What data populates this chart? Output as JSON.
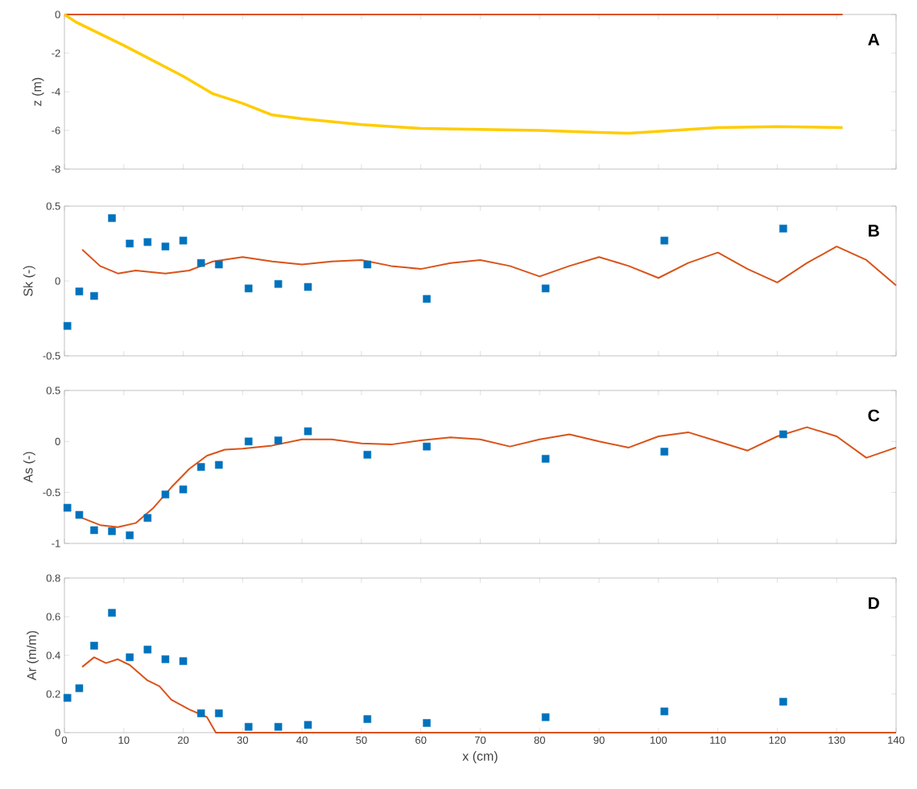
{
  "chart_data": [
    {
      "type": "line",
      "ylabel": "z (m)",
      "annotations": [
        "A"
      ],
      "xlim": [
        0,
        140
      ],
      "xticks": [
        0,
        10,
        20,
        30,
        40,
        50,
        60,
        70,
        80,
        90,
        100,
        110,
        120,
        130,
        140
      ],
      "ylim": [
        -8,
        0
      ],
      "yticks": [
        -8,
        -6,
        -4,
        -2,
        0
      ],
      "tick_labels": "y",
      "grid": false,
      "series": [
        {
          "color": "#d95319",
          "x": [
            0,
            131
          ],
          "values": [
            0,
            0
          ]
        },
        {
          "color": "#ffcc00",
          "x": [
            0,
            2,
            10,
            20,
            25,
            30,
            35,
            40,
            50,
            60,
            70,
            80,
            90,
            95,
            100,
            110,
            120,
            131
          ],
          "values": [
            0,
            -0.4,
            -1.6,
            -3.2,
            -4.1,
            -4.6,
            -5.2,
            -5.4,
            -5.7,
            -5.9,
            -5.95,
            -6.0,
            -6.1,
            -6.15,
            -6.05,
            -5.85,
            -5.8,
            -5.85
          ]
        }
      ]
    },
    {
      "type": "line",
      "ylabel": "Sk (-)",
      "annotations": [
        "B"
      ],
      "xlim": [
        0,
        140
      ],
      "xticks": [
        0,
        10,
        20,
        30,
        40,
        50,
        60,
        70,
        80,
        90,
        100,
        110,
        120,
        130,
        140
      ],
      "ylim": [
        -0.5,
        0.5
      ],
      "yticks": [
        -0.5,
        0,
        0.5
      ],
      "tick_labels": "y",
      "grid": false,
      "series": [
        {
          "type": "scatter",
          "marker": "square",
          "color": "#0072bd",
          "x": [
            0.5,
            2.5,
            5,
            8,
            11,
            14,
            17,
            20,
            23,
            26,
            31,
            36,
            41,
            51,
            61,
            81,
            101,
            121
          ],
          "values": [
            -0.3,
            -0.07,
            -0.1,
            0.42,
            0.25,
            0.26,
            0.23,
            0.27,
            0.12,
            0.11,
            -0.05,
            -0.02,
            -0.04,
            0.11,
            -0.12,
            -0.05,
            0.27,
            0.35
          ]
        },
        {
          "color": "#d95319",
          "x": [
            3,
            6,
            9,
            12,
            17,
            21,
            25,
            30,
            35,
            40,
            45,
            50,
            55,
            60,
            65,
            70,
            75,
            80,
            85,
            90,
            95,
            100,
            105,
            110,
            115,
            120,
            125,
            130,
            135,
            140
          ],
          "values": [
            0.21,
            0.1,
            0.05,
            0.07,
            0.05,
            0.07,
            0.13,
            0.16,
            0.13,
            0.11,
            0.13,
            0.14,
            0.1,
            0.08,
            0.12,
            0.14,
            0.1,
            0.03,
            0.1,
            0.16,
            0.1,
            0.02,
            0.12,
            0.19,
            0.08,
            -0.01,
            0.12,
            0.23,
            0.14,
            -0.03
          ]
        }
      ]
    },
    {
      "type": "line",
      "ylabel": "As (-)",
      "annotations": [
        "C"
      ],
      "xlim": [
        0,
        140
      ],
      "xticks": [
        0,
        10,
        20,
        30,
        40,
        50,
        60,
        70,
        80,
        90,
        100,
        110,
        120,
        130,
        140
      ],
      "ylim": [
        -1,
        0.5
      ],
      "yticks": [
        -1,
        -0.5,
        0,
        0.5
      ],
      "tick_labels": "y",
      "grid": false,
      "series": [
        {
          "type": "scatter",
          "marker": "square",
          "color": "#0072bd",
          "x": [
            0.5,
            2.5,
            5,
            8,
            11,
            14,
            17,
            20,
            23,
            26,
            31,
            36,
            41,
            51,
            61,
            81,
            101,
            121
          ],
          "values": [
            -0.65,
            -0.72,
            -0.87,
            -0.88,
            -0.92,
            -0.75,
            -0.52,
            -0.47,
            -0.25,
            -0.23,
            0.0,
            0.01,
            0.1,
            -0.13,
            -0.05,
            -0.17,
            -0.1,
            0.07
          ]
        },
        {
          "color": "#d95319",
          "x": [
            3,
            6,
            9,
            12,
            15,
            18,
            21,
            24,
            27,
            30,
            35,
            40,
            45,
            50,
            55,
            60,
            65,
            70,
            75,
            80,
            85,
            90,
            95,
            100,
            105,
            110,
            115,
            120,
            125,
            130,
            135,
            140
          ],
          "values": [
            -0.75,
            -0.82,
            -0.84,
            -0.8,
            -0.65,
            -0.45,
            -0.27,
            -0.14,
            -0.08,
            -0.07,
            -0.04,
            0.02,
            0.02,
            -0.02,
            -0.03,
            0.01,
            0.04,
            0.02,
            -0.05,
            0.02,
            0.07,
            0.0,
            -0.06,
            0.05,
            0.09,
            0.0,
            -0.09,
            0.05,
            0.14,
            0.05,
            -0.16,
            -0.06
          ]
        }
      ]
    },
    {
      "type": "line",
      "xlabel": "x (cm)",
      "ylabel": "Ar (m/m)",
      "annotations": [
        "D"
      ],
      "xlim": [
        0,
        140
      ],
      "xticks": [
        0,
        10,
        20,
        30,
        40,
        50,
        60,
        70,
        80,
        90,
        100,
        110,
        120,
        130,
        140
      ],
      "ylim": [
        0,
        0.8
      ],
      "yticks": [
        0,
        0.2,
        0.4,
        0.6,
        0.8
      ],
      "grid": false,
      "series": [
        {
          "type": "scatter",
          "marker": "square",
          "color": "#0072bd",
          "x": [
            0.5,
            2.5,
            5,
            8,
            11,
            14,
            17,
            20,
            23,
            26,
            31,
            36,
            41,
            51,
            61,
            81,
            101,
            121
          ],
          "values": [
            0.18,
            0.23,
            0.45,
            0.62,
            0.39,
            0.43,
            0.38,
            0.37,
            0.1,
            0.1,
            0.03,
            0.03,
            0.04,
            0.07,
            0.05,
            0.08,
            0.11,
            0.16
          ]
        },
        {
          "color": "#d95319",
          "x": [
            3,
            5,
            7,
            9,
            11,
            14,
            16,
            18,
            21,
            24,
            25.5,
            140
          ],
          "values": [
            0.34,
            0.39,
            0.36,
            0.38,
            0.35,
            0.27,
            0.24,
            0.17,
            0.12,
            0.08,
            0,
            0
          ]
        }
      ]
    }
  ]
}
